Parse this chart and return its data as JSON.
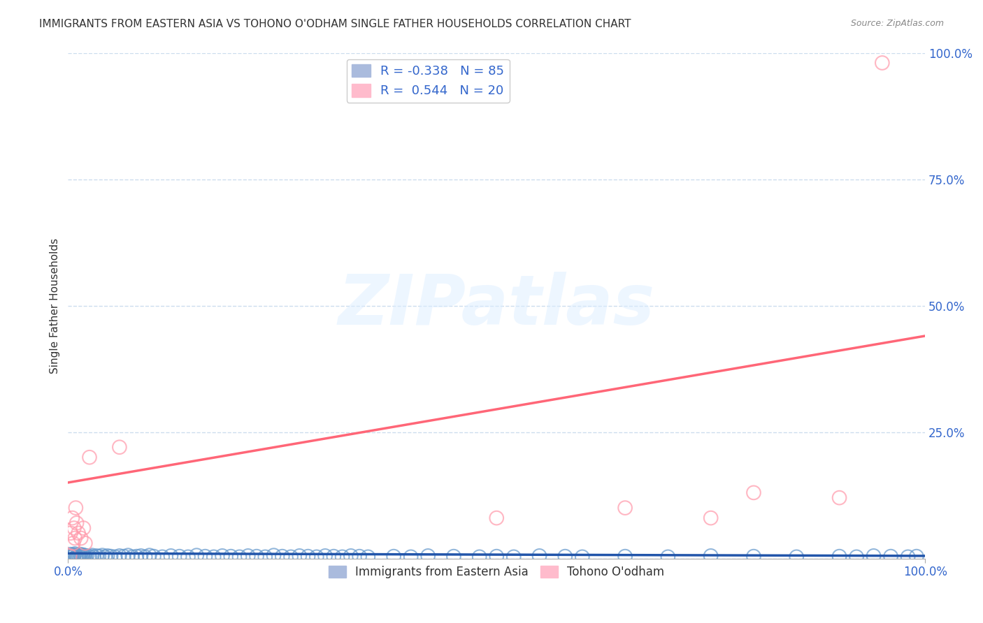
{
  "title": "IMMIGRANTS FROM EASTERN ASIA VS TOHONO O'ODHAM SINGLE FATHER HOUSEHOLDS CORRELATION CHART",
  "source": "Source: ZipAtlas.com",
  "xlabel": "",
  "ylabel": "Single Father Households",
  "xlim": [
    0.0,
    1.0
  ],
  "ylim": [
    0.0,
    1.0
  ],
  "xticks": [
    0.0,
    1.0
  ],
  "xtick_labels": [
    "0.0%",
    "100.0%"
  ],
  "yticks": [
    0.0,
    0.25,
    0.5,
    0.75,
    1.0
  ],
  "ytick_labels": [
    "",
    "25.0%",
    "50.0%",
    "75.0%",
    "100.0%"
  ],
  "blue_R": -0.338,
  "blue_N": 85,
  "pink_R": 0.544,
  "pink_N": 20,
  "blue_color": "#6699CC",
  "pink_color": "#FF99AA",
  "blue_line_color": "#2255AA",
  "pink_line_color": "#FF6677",
  "title_color": "#333333",
  "axis_color": "#3366CC",
  "grid_color": "#CCDDEE",
  "watermark": "ZIPatlas",
  "legend_labels": [
    "Immigrants from Eastern Asia",
    "Tohono O'odham"
  ],
  "blue_scatter_x": [
    0.002,
    0.003,
    0.004,
    0.005,
    0.006,
    0.007,
    0.008,
    0.009,
    0.01,
    0.011,
    0.012,
    0.013,
    0.014,
    0.015,
    0.016,
    0.017,
    0.018,
    0.019,
    0.02,
    0.022,
    0.025,
    0.028,
    0.03,
    0.033,
    0.036,
    0.04,
    0.043,
    0.046,
    0.05,
    0.055,
    0.06,
    0.065,
    0.07,
    0.075,
    0.08,
    0.085,
    0.09,
    0.095,
    0.1,
    0.11,
    0.12,
    0.13,
    0.14,
    0.15,
    0.16,
    0.17,
    0.18,
    0.19,
    0.2,
    0.21,
    0.22,
    0.23,
    0.24,
    0.25,
    0.26,
    0.27,
    0.28,
    0.29,
    0.3,
    0.31,
    0.32,
    0.33,
    0.34,
    0.35,
    0.38,
    0.4,
    0.42,
    0.45,
    0.48,
    0.5,
    0.52,
    0.55,
    0.58,
    0.6,
    0.65,
    0.7,
    0.75,
    0.8,
    0.85,
    0.9,
    0.92,
    0.94,
    0.96,
    0.98,
    0.99
  ],
  "blue_scatter_y": [
    0.005,
    0.008,
    0.003,
    0.006,
    0.004,
    0.007,
    0.009,
    0.002,
    0.005,
    0.003,
    0.006,
    0.004,
    0.008,
    0.003,
    0.005,
    0.007,
    0.004,
    0.006,
    0.003,
    0.005,
    0.004,
    0.006,
    0.003,
    0.005,
    0.004,
    0.006,
    0.003,
    0.005,
    0.004,
    0.003,
    0.005,
    0.004,
    0.006,
    0.003,
    0.004,
    0.005,
    0.003,
    0.006,
    0.004,
    0.003,
    0.005,
    0.004,
    0.003,
    0.006,
    0.004,
    0.003,
    0.005,
    0.004,
    0.003,
    0.005,
    0.004,
    0.003,
    0.006,
    0.004,
    0.003,
    0.005,
    0.004,
    0.003,
    0.005,
    0.004,
    0.003,
    0.005,
    0.004,
    0.003,
    0.004,
    0.003,
    0.005,
    0.004,
    0.003,
    0.004,
    0.003,
    0.005,
    0.004,
    0.003,
    0.004,
    0.003,
    0.005,
    0.004,
    0.003,
    0.004,
    0.003,
    0.005,
    0.004,
    0.003,
    0.004
  ],
  "pink_scatter_x": [
    0.002,
    0.003,
    0.005,
    0.006,
    0.007,
    0.008,
    0.009,
    0.01,
    0.012,
    0.015,
    0.018,
    0.02,
    0.025,
    0.06,
    0.5,
    0.65,
    0.75,
    0.8,
    0.9,
    0.95
  ],
  "pink_scatter_y": [
    0.005,
    0.05,
    0.08,
    0.03,
    0.06,
    0.04,
    0.1,
    0.07,
    0.05,
    0.04,
    0.06,
    0.03,
    0.2,
    0.22,
    0.08,
    0.1,
    0.08,
    0.13,
    0.12,
    0.98
  ],
  "blue_trend_x": [
    0.0,
    1.0
  ],
  "blue_trend_y": [
    0.01,
    0.005
  ],
  "pink_trend_x": [
    0.0,
    1.0
  ],
  "pink_trend_y": [
    0.15,
    0.44
  ]
}
